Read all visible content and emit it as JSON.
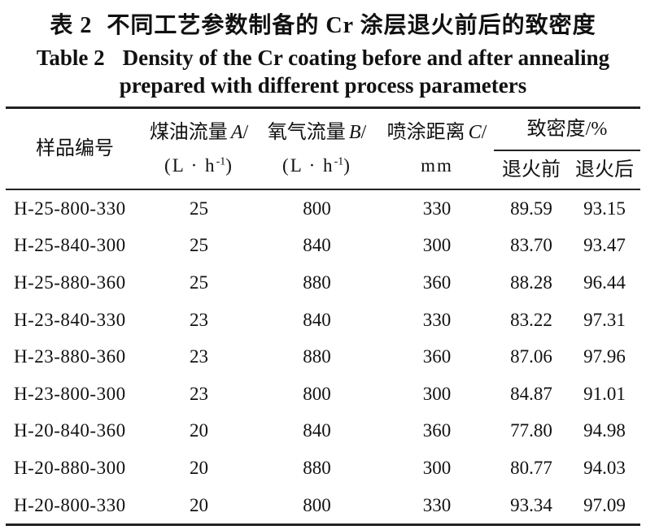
{
  "title": {
    "zh_label": "表 2",
    "zh_text": "不同工艺参数制备的 Cr 涂层退火前后的致密度",
    "en_label": "Table 2",
    "en_line1": "Density of the Cr coating before and after annealing",
    "en_line2": "prepared with different process parameters"
  },
  "table": {
    "header": {
      "sample": "样品编号",
      "kerosene": {
        "name": "煤油流量",
        "symbol": "A",
        "slash": "/",
        "unit_pre": "(L · h",
        "unit_sup": "-1",
        "unit_post": ")"
      },
      "oxygen": {
        "name": "氧气流量",
        "symbol": "B",
        "slash": "/",
        "unit_pre": "(L · h",
        "unit_sup": "-1",
        "unit_post": ")"
      },
      "distance": {
        "name": "喷涂距离",
        "symbol": "C",
        "slash": "/",
        "unit": "mm"
      },
      "density": {
        "title": "致密度/%",
        "before": "退火前",
        "after": "退火后"
      }
    },
    "rows": [
      {
        "id": "H-25-800-330",
        "kerosene": "25",
        "oxygen": "800",
        "distance": "330",
        "before": "89.59",
        "after": "93.15"
      },
      {
        "id": "H-25-840-300",
        "kerosene": "25",
        "oxygen": "840",
        "distance": "300",
        "before": "83.70",
        "after": "93.47"
      },
      {
        "id": "H-25-880-360",
        "kerosene": "25",
        "oxygen": "880",
        "distance": "360",
        "before": "88.28",
        "after": "96.44"
      },
      {
        "id": "H-23-840-330",
        "kerosene": "23",
        "oxygen": "840",
        "distance": "330",
        "before": "83.22",
        "after": "97.31"
      },
      {
        "id": "H-23-880-360",
        "kerosene": "23",
        "oxygen": "880",
        "distance": "360",
        "before": "87.06",
        "after": "97.96"
      },
      {
        "id": "H-23-800-300",
        "kerosene": "23",
        "oxygen": "800",
        "distance": "300",
        "before": "84.87",
        "after": "91.01"
      },
      {
        "id": "H-20-840-360",
        "kerosene": "20",
        "oxygen": "840",
        "distance": "360",
        "before": "77.80",
        "after": "94.98"
      },
      {
        "id": "H-20-880-300",
        "kerosene": "20",
        "oxygen": "880",
        "distance": "300",
        "before": "80.77",
        "after": "94.03"
      },
      {
        "id": "H-20-800-330",
        "kerosene": "20",
        "oxygen": "800",
        "distance": "330",
        "before": "93.34",
        "after": "97.09"
      }
    ],
    "colors": {
      "rule": "#222222",
      "text": "#111111",
      "background": "#ffffff"
    }
  }
}
